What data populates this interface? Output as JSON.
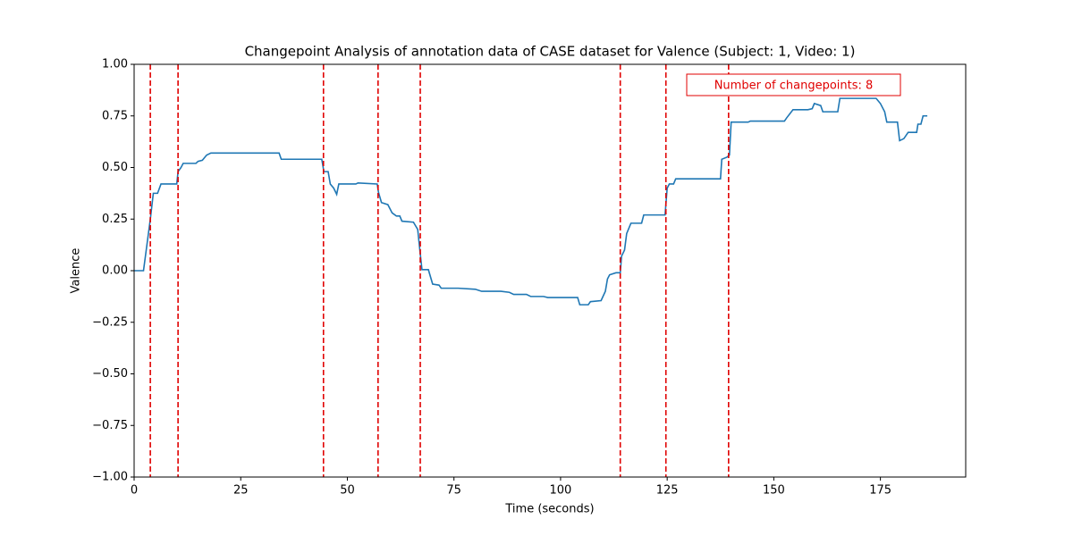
{
  "chart_data": {
    "type": "line",
    "title": "Changepoint Analysis of annotation data of CASE dataset for Valence (Subject: 1, Video: 1)",
    "x_label": "Time (seconds)",
    "y_label": "Valence",
    "annotation": "Number of changepoints: 8",
    "annotation_color": "#e00000",
    "xlim": [
      0,
      195
    ],
    "ylim": [
      -1,
      1
    ],
    "xticks": [
      0,
      25,
      50,
      75,
      100,
      125,
      150,
      175
    ],
    "yticks": [
      {
        "value": -1,
        "label": "−1.00"
      },
      {
        "value": -0.75,
        "label": "−0.75"
      },
      {
        "value": -0.5,
        "label": "−0.50"
      },
      {
        "value": -0.25,
        "label": "−0.25"
      },
      {
        "value": 0,
        "label": "0.00"
      },
      {
        "value": 0.25,
        "label": "0.25"
      },
      {
        "value": 0.5,
        "label": "0.50"
      },
      {
        "value": 0.75,
        "label": "0.75"
      },
      {
        "value": 1,
        "label": "1.00"
      }
    ],
    "changepoints": [
      3.8,
      10.3,
      44.4,
      57.2,
      67.1,
      114,
      124.7,
      139.4
    ],
    "changepoint_color": "#e00000",
    "x": [
      0,
      2.2,
      3.8,
      4.5,
      5.5,
      6.3,
      10,
      10.3,
      11,
      11.5,
      14.5,
      15,
      16,
      17,
      18,
      34,
      34.5,
      44,
      44.5,
      45.5,
      46,
      46.8,
      47.5,
      48,
      52,
      52.5,
      57,
      57.3,
      58,
      59.5,
      60.5,
      61.5,
      62.3,
      62.8,
      65.5,
      66.5,
      67,
      67.5,
      69,
      70,
      71.5,
      72,
      76,
      80,
      81.5,
      86,
      88,
      89,
      92,
      93,
      96,
      97,
      104,
      104.5,
      106.5,
      107,
      109.5,
      110.5,
      111,
      111.5,
      113,
      114,
      114.3,
      115,
      115.5,
      116.5,
      119,
      119.5,
      124.5,
      125,
      125.5,
      126.5,
      127,
      137.5,
      137.8,
      139,
      139.6,
      140,
      144,
      144.5,
      152.5,
      153,
      154.5,
      158,
      159,
      159.5,
      161,
      161.5,
      165,
      165.5,
      174,
      175,
      176,
      176.5,
      179,
      179.5,
      180.5,
      181.5,
      183.5,
      183.8,
      184.5,
      185,
      186
    ],
    "series": [
      {
        "color": "#1f77b4",
        "values": [
          0,
          0,
          0.25,
          0.375,
          0.375,
          0.42,
          0.42,
          0.48,
          0.5,
          0.52,
          0.52,
          0.53,
          0.535,
          0.56,
          0.57,
          0.57,
          0.54,
          0.54,
          0.48,
          0.48,
          0.42,
          0.4,
          0.37,
          0.42,
          0.42,
          0.425,
          0.42,
          0.38,
          0.33,
          0.32,
          0.28,
          0.265,
          0.265,
          0.24,
          0.235,
          0.2,
          0.1,
          0.005,
          0.005,
          -0.065,
          -0.07,
          -0.085,
          -0.085,
          -0.09,
          -0.1,
          -0.1,
          -0.105,
          -0.115,
          -0.115,
          -0.125,
          -0.125,
          -0.13,
          -0.13,
          -0.165,
          -0.165,
          -0.15,
          -0.145,
          -0.1,
          -0.04,
          -0.02,
          -0.01,
          -0.01,
          0.07,
          0.1,
          0.18,
          0.23,
          0.23,
          0.27,
          0.27,
          0.4,
          0.42,
          0.42,
          0.445,
          0.445,
          0.54,
          0.55,
          0.56,
          0.72,
          0.72,
          0.725,
          0.725,
          0.74,
          0.78,
          0.78,
          0.785,
          0.81,
          0.8,
          0.77,
          0.77,
          0.835,
          0.835,
          0.81,
          0.77,
          0.72,
          0.72,
          0.63,
          0.64,
          0.67,
          0.67,
          0.71,
          0.71,
          0.75,
          0.75
        ]
      }
    ]
  }
}
